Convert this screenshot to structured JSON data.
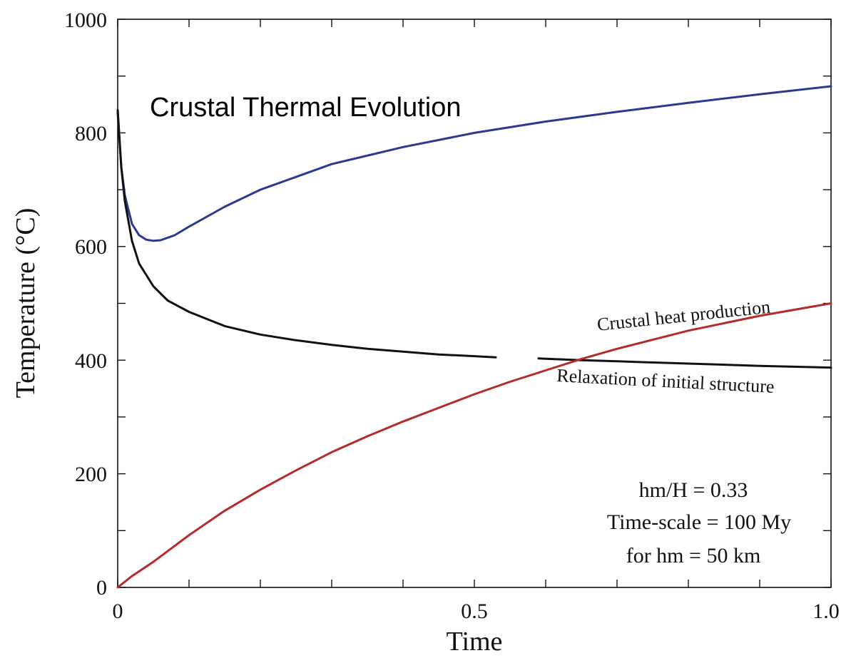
{
  "chart_data": {
    "type": "line",
    "title": "Crustal Thermal Evolution",
    "xlabel": "Time",
    "ylabel": "Temperature (°C)",
    "xlim": [
      0,
      1.0
    ],
    "ylim": [
      0,
      1000
    ],
    "x_tick_labels": [
      "0",
      "0.5",
      "1.0"
    ],
    "y_tick_labels": [
      "0",
      "200",
      "400",
      "600",
      "800",
      "1000"
    ],
    "grid": false,
    "series": [
      {
        "color": "#2a3a8f",
        "x": [
          0,
          0.005,
          0.01,
          0.02,
          0.03,
          0.04,
          0.05,
          0.06,
          0.08,
          0.1,
          0.15,
          0.2,
          0.3,
          0.4,
          0.5,
          0.6,
          0.7,
          0.8,
          0.9,
          1.0
        ],
        "y": [
          835,
          740,
          690,
          640,
          620,
          612,
          610,
          611,
          620,
          635,
          670,
          700,
          745,
          775,
          800,
          820,
          837,
          853,
          868,
          882
        ]
      },
      {
        "name": "Relaxation of initial structure",
        "color": "#111111",
        "x": [
          0,
          0.005,
          0.01,
          0.02,
          0.03,
          0.05,
          0.07,
          0.1,
          0.15,
          0.2,
          0.25,
          0.3,
          0.35,
          0.4,
          0.45,
          0.5,
          0.53,
          null,
          0.59,
          0.65,
          0.7,
          0.8,
          0.9,
          1.0
        ],
        "y": [
          840,
          740,
          680,
          610,
          570,
          530,
          505,
          485,
          460,
          445,
          435,
          427,
          420,
          415,
          410,
          407,
          405,
          null,
          403,
          400,
          398,
          394,
          390,
          387
        ]
      },
      {
        "name": "Crustal heat production",
        "color": "#b52a2a",
        "x": [
          0,
          0.02,
          0.05,
          0.1,
          0.15,
          0.2,
          0.25,
          0.3,
          0.35,
          0.4,
          0.45,
          0.5,
          0.55,
          0.6,
          0.65,
          0.7,
          0.8,
          0.9,
          1.0
        ],
        "y": [
          0,
          20,
          45,
          92,
          135,
          172,
          206,
          238,
          266,
          292,
          316,
          340,
          362,
          382,
          402,
          420,
          452,
          478,
          500
        ]
      }
    ],
    "annotations": [
      "hm/H = 0.33",
      "Time-scale = 100 My",
      "for hm = 50 km"
    ]
  }
}
